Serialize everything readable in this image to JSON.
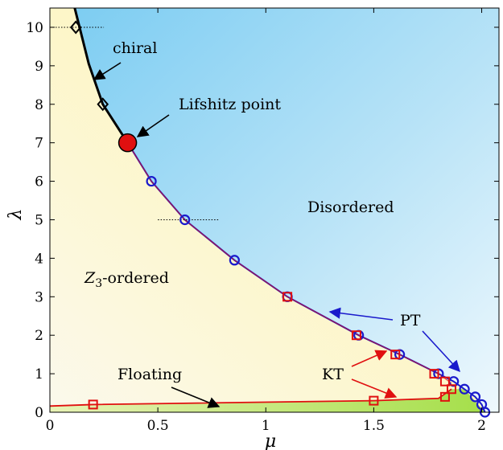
{
  "chart_data": {
    "type": "scatter",
    "title": "",
    "xlabel": "μ",
    "ylabel": "λ",
    "xlim": [
      0,
      2.08
    ],
    "ylim": [
      0,
      10.5
    ],
    "xticks": [
      "0",
      "0.5",
      "1",
      "1.5",
      "2"
    ],
    "yticks": [
      "0",
      "1",
      "2",
      "3",
      "4",
      "5",
      "6",
      "7",
      "8",
      "9",
      "10"
    ],
    "grid": false,
    "regions": {
      "disordered": "Disordered",
      "ordered_main": "Z",
      "ordered_sub": "3",
      "ordered_suffix": "-ordered",
      "floating": "Floating"
    },
    "annotations": {
      "chiral": "chiral",
      "lifshitz": "Lifshitz point",
      "pt": "PT",
      "kt": "KT"
    },
    "colors": {
      "disordered": "#8fd3f4",
      "ordered": "#fdf7cf",
      "floating": "#a8e04a",
      "chiral_line": "#000000",
      "pt_line": "#1a1acc",
      "kt_line": "#e01010",
      "lifshitz_point": "#e01010"
    },
    "series": [
      {
        "marker": "diamond",
        "line": "chiral",
        "x": [
          0.12,
          0.245
        ],
        "y": [
          10,
          8
        ]
      },
      {
        "marker": "circle",
        "line": "pt",
        "x": [
          0.47,
          0.625,
          0.855,
          1.1,
          1.43,
          1.62,
          1.8,
          1.87,
          1.92,
          1.97,
          2.0,
          2.015
        ],
        "y": [
          6,
          5,
          3.95,
          3.0,
          2.0,
          1.5,
          1.0,
          0.8,
          0.6,
          0.4,
          0.2,
          0.0
        ]
      },
      {
        "marker": "square",
        "line": "kt",
        "x": [
          0.2,
          1.5,
          1.1,
          1.42,
          1.6,
          1.78,
          1.83,
          1.86,
          1.83
        ],
        "y": [
          0.2,
          0.3,
          3.0,
          2.0,
          1.5,
          1.0,
          0.8,
          0.6,
          0.4
        ]
      },
      {
        "marker": "large-circle",
        "line": "lifshitz",
        "x": [
          0.36
        ],
        "y": [
          7.0
        ]
      }
    ]
  }
}
